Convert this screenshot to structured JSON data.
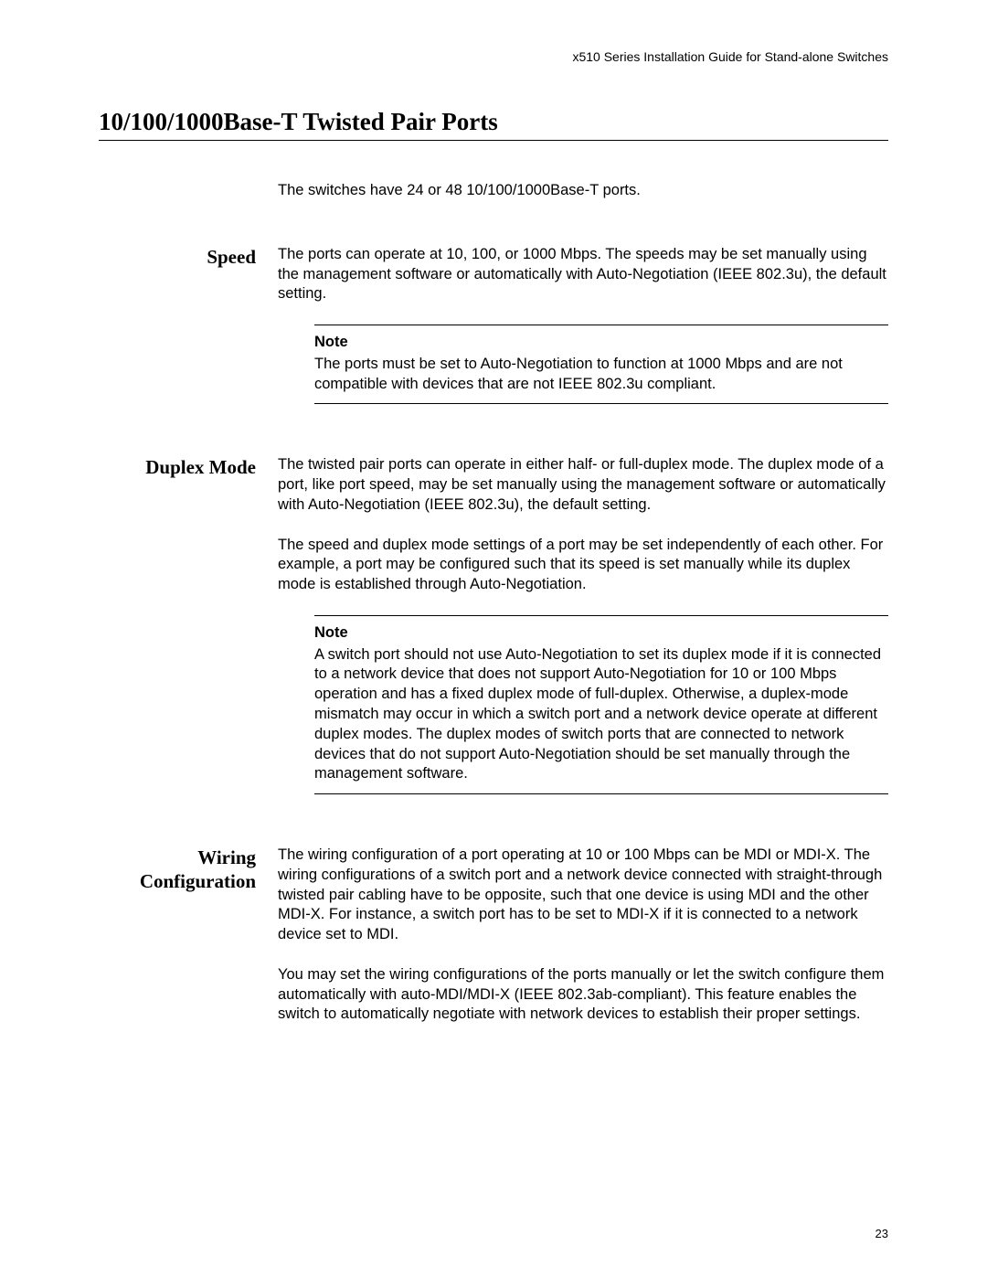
{
  "header": {
    "running_head": "x510 Series Installation Guide for Stand-alone Switches"
  },
  "title": "10/100/1000Base-T Twisted Pair Ports",
  "intro": "The switches have 24 or 48 10/100/1000Base-T ports.",
  "sections": {
    "speed": {
      "heading": "Speed",
      "p1": "The ports can operate at 10, 100, or 1000 Mbps. The speeds may be set manually using the management software or automatically with Auto-Negotiation (IEEE 802.3u), the default setting.",
      "note_label": "Note",
      "note_text": "The ports must be set to Auto-Negotiation to function at 1000 Mbps and are not compatible with devices that are not IEEE 802.3u compliant."
    },
    "duplex": {
      "heading": "Duplex Mode",
      "p1": "The twisted pair ports can operate in either half- or full-duplex mode. The duplex mode of a port, like port speed, may be set manually using the management software or automatically with Auto-Negotiation (IEEE 802.3u), the default setting.",
      "p2": "The speed and duplex mode settings of a port may be set independently of each other. For example, a port may be configured such that its speed is set manually while its duplex mode is established through Auto-Negotiation.",
      "note_label": "Note",
      "note_text": "A switch port should not use Auto-Negotiation to set its duplex mode if it is connected to a network device that does not support Auto-Negotiation for 10 or 100 Mbps operation and has a fixed duplex mode of full-duplex. Otherwise, a duplex-mode mismatch may occur in which a switch port and a network device operate at different duplex modes. The duplex modes of switch ports that are connected to network devices that do not support Auto-Negotiation should be set manually through the management software."
    },
    "wiring": {
      "heading_line1": "Wiring",
      "heading_line2": "Configuration",
      "p1": "The wiring configuration of a port operating at 10 or 100 Mbps can be MDI or MDI-X. The wiring configurations of a switch port and a network device connected with straight-through twisted pair cabling have to be opposite, such that one device is using MDI and the other MDI-X. For instance, a switch port has to be set to MDI-X if it is connected to a network device set to MDI.",
      "p2": "You may set the wiring configurations of the ports manually or let the switch configure them automatically with auto-MDI/MDI-X (IEEE 802.3ab-compliant). This feature enables the switch to automatically negotiate with network devices to establish their proper settings."
    }
  },
  "page_number": "23"
}
